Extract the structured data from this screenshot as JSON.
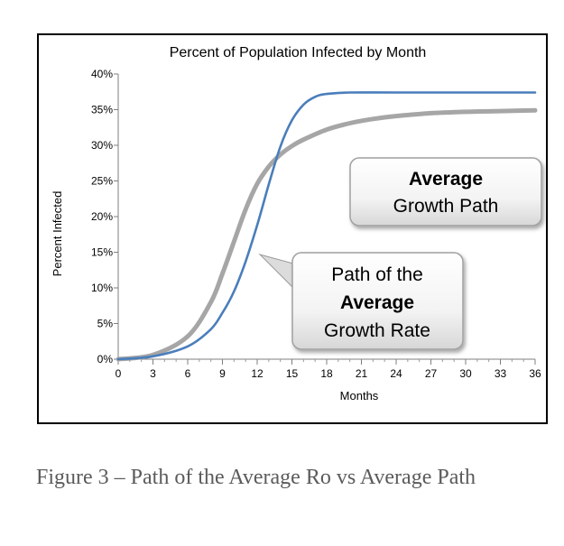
{
  "chart_data": {
    "type": "line",
    "title": "Percent of Population Infected by Month",
    "xlabel": "Months",
    "ylabel": "Percent Infected",
    "xlim": [
      0,
      36
    ],
    "ylim": [
      0,
      40
    ],
    "x_ticks": [
      "0",
      "3",
      "6",
      "9",
      "12",
      "15",
      "18",
      "21",
      "24",
      "27",
      "30",
      "33",
      "36"
    ],
    "y_ticks": [
      "0%",
      "5%",
      "10%",
      "15%",
      "20%",
      "25%",
      "30%",
      "35%",
      "40%"
    ],
    "grid": false,
    "legend": "none",
    "series": [
      {
        "name": "Path of the Average Growth Rate",
        "color": "#4a7ebb",
        "x": [
          0,
          3,
          6,
          8,
          9,
          10,
          11,
          12,
          13,
          14,
          15,
          16,
          17,
          18,
          20,
          24,
          30,
          36
        ],
        "values": [
          0,
          0.4,
          1.8,
          4.2,
          6.5,
          9.5,
          13.7,
          18.8,
          24.5,
          29.8,
          33.5,
          35.7,
          36.8,
          37.2,
          37.4,
          37.4,
          37.4,
          37.4
        ]
      },
      {
        "name": "Average Growth Path",
        "color": "#a6a6a6",
        "x": [
          0,
          3,
          6,
          8,
          9,
          10,
          11,
          12,
          13,
          14,
          15,
          16,
          18,
          20,
          22,
          24,
          27,
          30,
          33,
          36
        ],
        "values": [
          0,
          0.6,
          3.2,
          8.0,
          12.0,
          16.5,
          21.0,
          24.6,
          27.0,
          28.7,
          29.9,
          30.8,
          32.2,
          33.1,
          33.7,
          34.1,
          34.5,
          34.7,
          34.8,
          34.9
        ]
      }
    ],
    "annotations": [
      {
        "lines": [
          "Average",
          "Growth Path"
        ],
        "bold_line": 0,
        "points_to": "Average Growth Path"
      },
      {
        "lines": [
          "Path of the",
          "Average",
          "Growth Rate"
        ],
        "bold_line": 1,
        "points_to": "Path of the Average Growth Rate"
      }
    ]
  },
  "caption": "Figure 3 – Path of the Average Ro vs Average Path"
}
